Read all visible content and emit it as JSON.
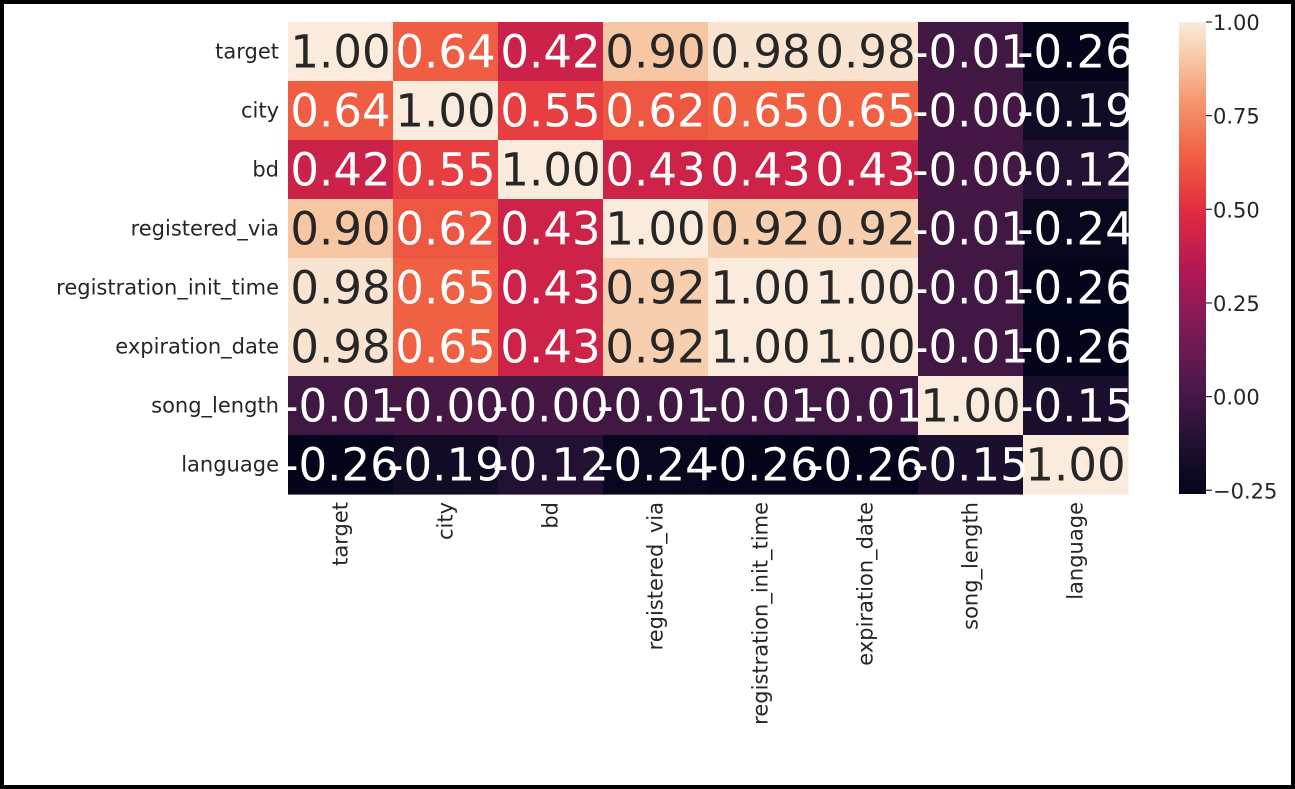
{
  "chart_data": {
    "type": "heatmap",
    "title": "",
    "xlabel": "",
    "ylabel": "",
    "variables": [
      "target",
      "city",
      "bd",
      "registered_via",
      "registration_init_time",
      "expiration_date",
      "song_length",
      "language"
    ],
    "matrix": [
      [
        1.0,
        0.64,
        0.42,
        0.9,
        0.98,
        0.98,
        -0.01,
        -0.26
      ],
      [
        0.64,
        1.0,
        0.55,
        0.62,
        0.65,
        0.65,
        -0.0,
        -0.19
      ],
      [
        0.42,
        0.55,
        1.0,
        0.43,
        0.43,
        0.43,
        -0.0,
        -0.12
      ],
      [
        0.9,
        0.62,
        0.43,
        1.0,
        0.92,
        0.92,
        -0.01,
        -0.24
      ],
      [
        0.98,
        0.65,
        0.43,
        0.92,
        1.0,
        1.0,
        -0.01,
        -0.26
      ],
      [
        0.98,
        0.65,
        0.43,
        0.92,
        1.0,
        1.0,
        -0.01,
        -0.26
      ],
      [
        -0.01,
        -0.0,
        -0.0,
        -0.01,
        -0.01,
        -0.01,
        1.0,
        -0.15
      ],
      [
        -0.26,
        -0.19,
        -0.12,
        -0.24,
        -0.26,
        -0.26,
        -0.15,
        1.0
      ]
    ],
    "cell_labels": [
      [
        "1.00",
        "0.64",
        "0.42",
        "0.90",
        "0.98",
        "0.98",
        "-0.01",
        "-0.26"
      ],
      [
        "0.64",
        "1.00",
        "0.55",
        "0.62",
        "0.65",
        "0.65",
        "-0.00",
        "-0.19"
      ],
      [
        "0.42",
        "0.55",
        "1.00",
        "0.43",
        "0.43",
        "0.43",
        "-0.00",
        "-0.12"
      ],
      [
        "0.90",
        "0.62",
        "0.43",
        "1.00",
        "0.92",
        "0.92",
        "-0.01",
        "-0.24"
      ],
      [
        "0.98",
        "0.65",
        "0.43",
        "0.92",
        "1.00",
        "1.00",
        "-0.01",
        "-0.26"
      ],
      [
        "0.98",
        "0.65",
        "0.43",
        "0.92",
        "1.00",
        "1.00",
        "-0.01",
        "-0.26"
      ],
      [
        "-0.01",
        "-0.00",
        "-0.00",
        "-0.01",
        "-0.01",
        "-0.01",
        "1.00",
        "-0.15"
      ],
      [
        "-0.26",
        "-0.19",
        "-0.12",
        "-0.24",
        "-0.26",
        "-0.26",
        "-0.15",
        "1.00"
      ]
    ],
    "value_range": [
      -0.26,
      1.0
    ],
    "colormap": "rocket",
    "colorbar": {
      "ticks": [
        1.0,
        0.75,
        0.5,
        0.25,
        0.0,
        -0.25
      ],
      "tick_labels": [
        "1.00",
        "0.75",
        "0.50",
        "0.25",
        "0.00",
        "−0.25"
      ],
      "placement": "right"
    },
    "annotated": true,
    "grid": false
  },
  "colors": {
    "page_background": "#000000",
    "figure_background": "#ffffff",
    "text": "#262626",
    "annotation_dark_text": "#262626",
    "annotation_light_text": "#ffffff"
  }
}
